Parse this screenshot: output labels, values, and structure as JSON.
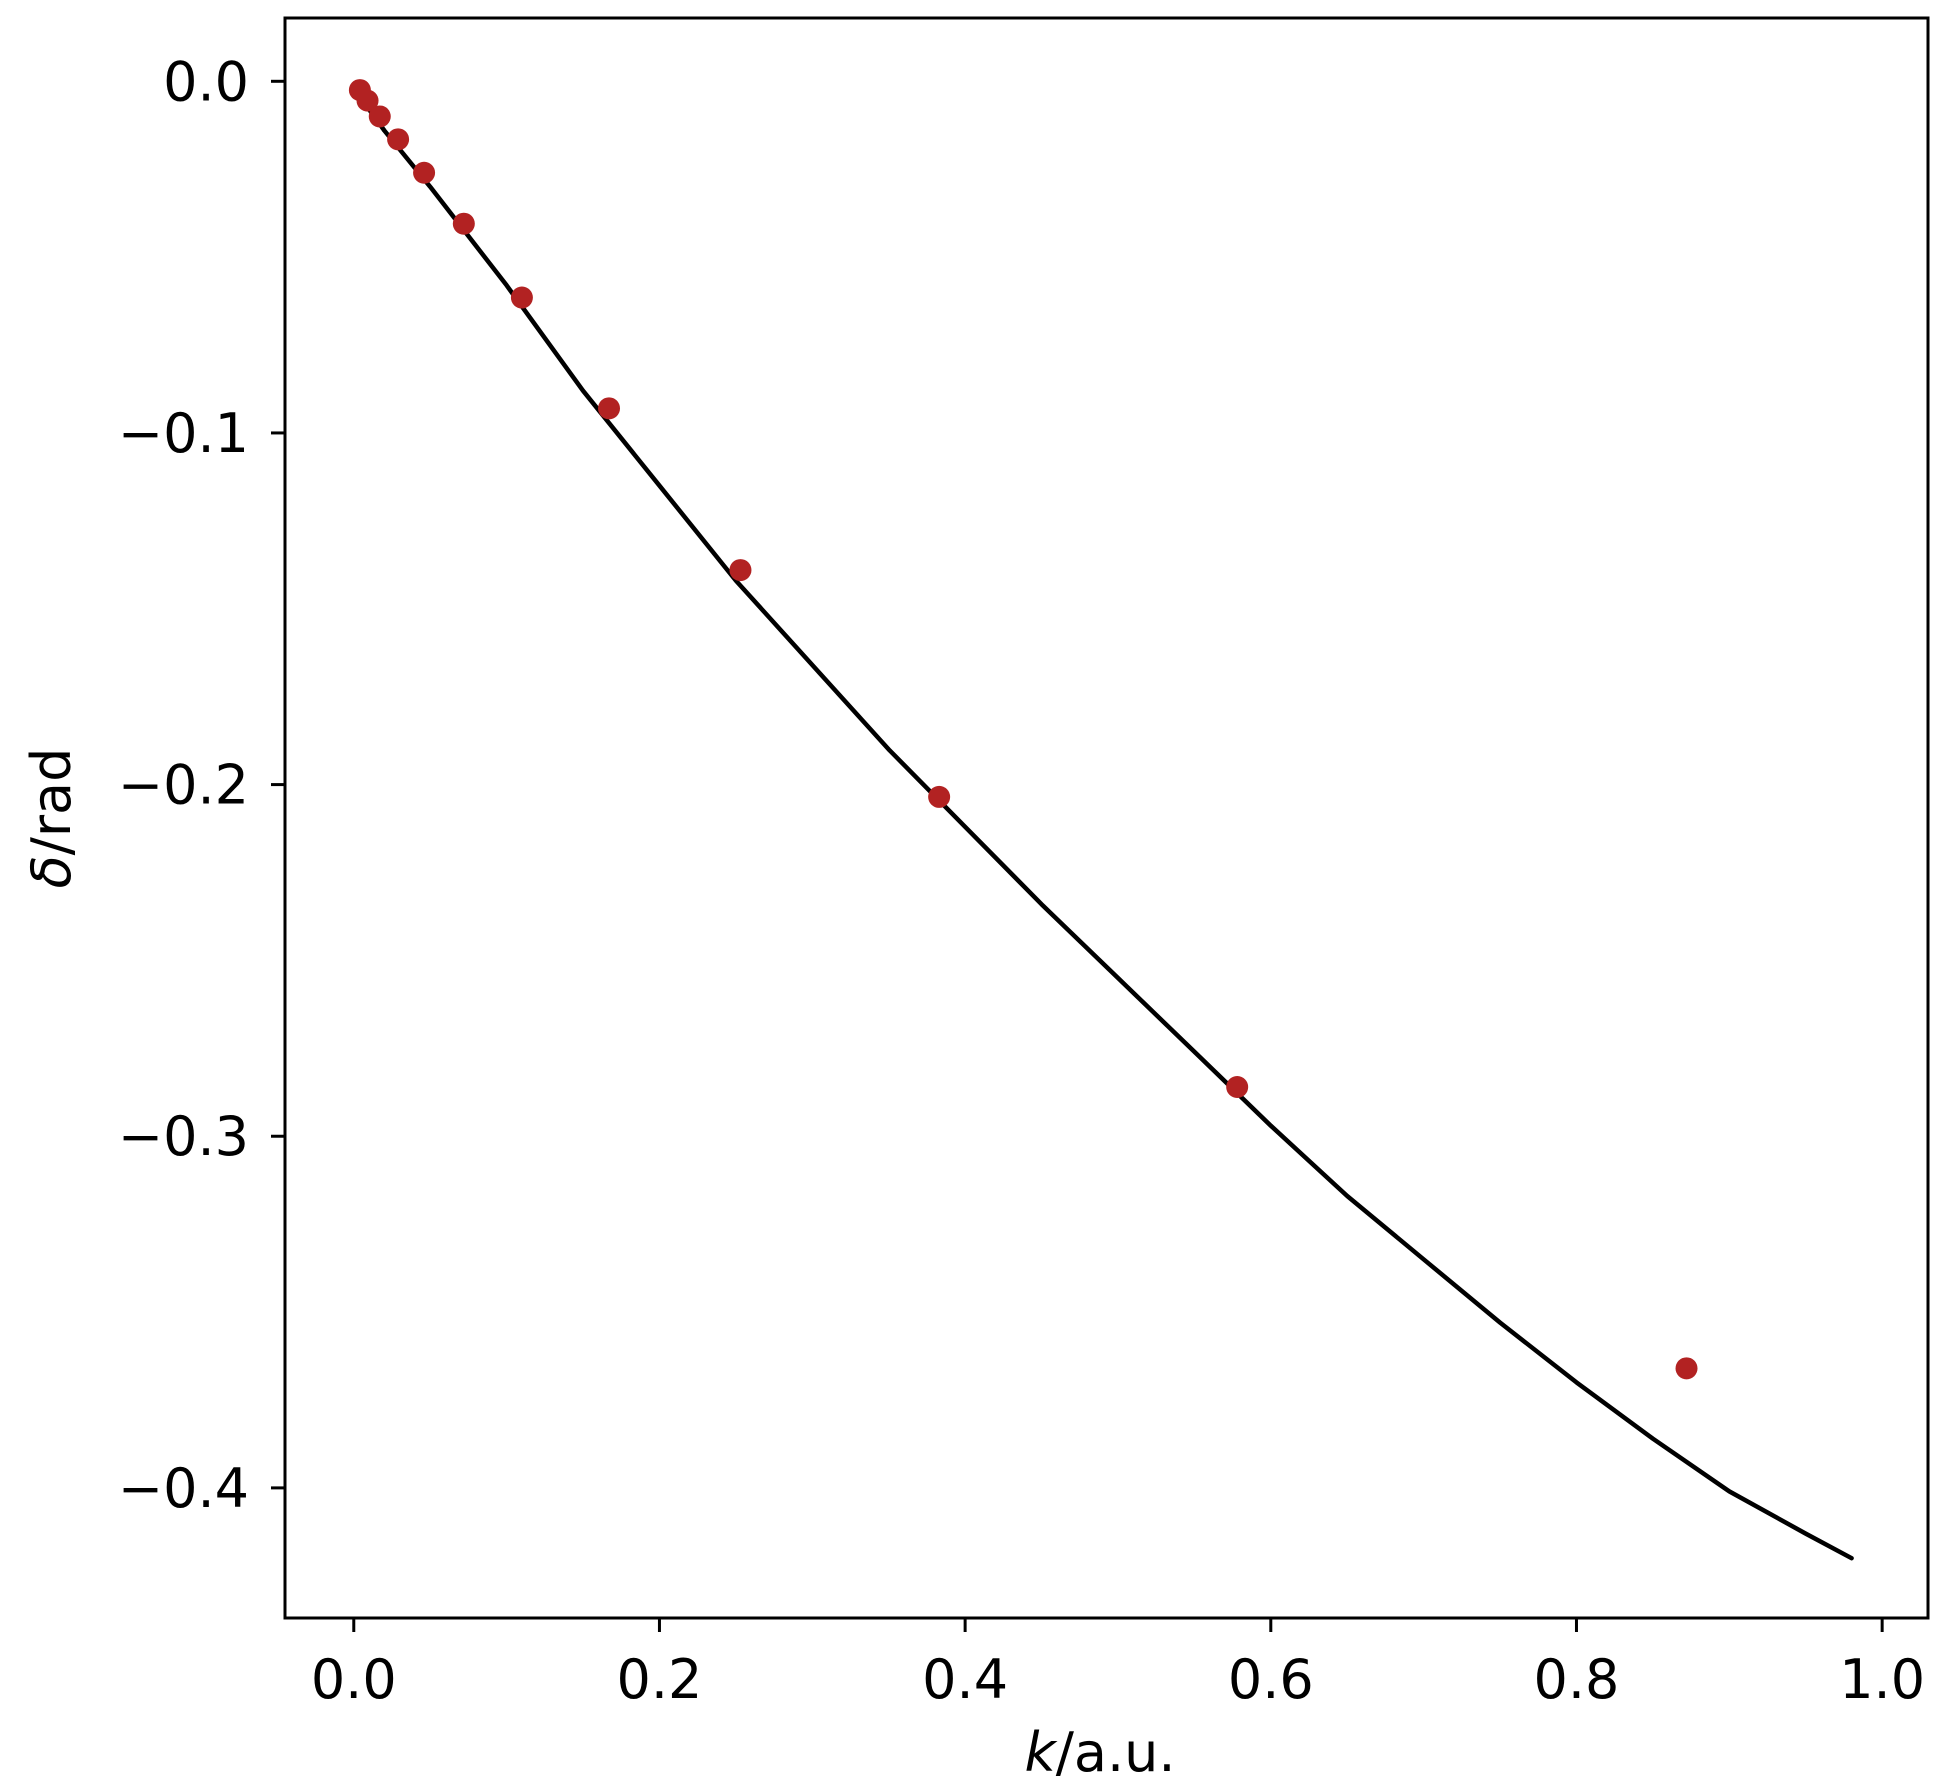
{
  "chart_data": {
    "type": "scatter",
    "xlabel_var": "k",
    "xlabel_unit": "/a.u.",
    "ylabel_var": "δ",
    "ylabel_unit": "/rad",
    "xlim": [
      -0.045,
      1.03
    ],
    "ylim": [
      -0.437,
      0.018
    ],
    "grid": false,
    "legend": "none",
    "x_ticks": [
      0.0,
      0.2,
      0.4,
      0.6,
      0.8,
      1.0
    ],
    "x_tick_labels": [
      "0.0",
      "0.2",
      "0.4",
      "0.6",
      "0.8",
      "1.0"
    ],
    "y_ticks": [
      0.0,
      -0.1,
      -0.2,
      -0.3,
      -0.4
    ],
    "y_tick_labels": [
      "0.0",
      "−0.1",
      "−0.2",
      "−0.3",
      "−0.4"
    ],
    "series": [
      {
        "kind": "line",
        "color": "#000000",
        "x": [
          0.0,
          0.02,
          0.05,
          0.1,
          0.15,
          0.2,
          0.25,
          0.3,
          0.35,
          0.4,
          0.45,
          0.5,
          0.55,
          0.6,
          0.65,
          0.7,
          0.75,
          0.8,
          0.85,
          0.9,
          0.95,
          0.98
        ],
        "y": [
          -0.002,
          -0.014,
          -0.03,
          -0.058,
          -0.088,
          -0.115,
          -0.142,
          -0.166,
          -0.19,
          -0.212,
          -0.234,
          -0.255,
          -0.276,
          -0.297,
          -0.317,
          -0.335,
          -0.353,
          -0.37,
          -0.386,
          -0.401,
          -0.413,
          -0.42
        ]
      },
      {
        "kind": "scatter",
        "color": "#b22222",
        "x": [
          0.004,
          0.009,
          0.017,
          0.029,
          0.046,
          0.072,
          0.11,
          0.167,
          0.253,
          0.383,
          0.578,
          0.872
        ],
        "y": [
          -0.0025,
          -0.0055,
          -0.01,
          -0.0165,
          -0.026,
          -0.0405,
          -0.0615,
          -0.093,
          -0.139,
          -0.2035,
          -0.286,
          -0.366
        ]
      }
    ]
  }
}
